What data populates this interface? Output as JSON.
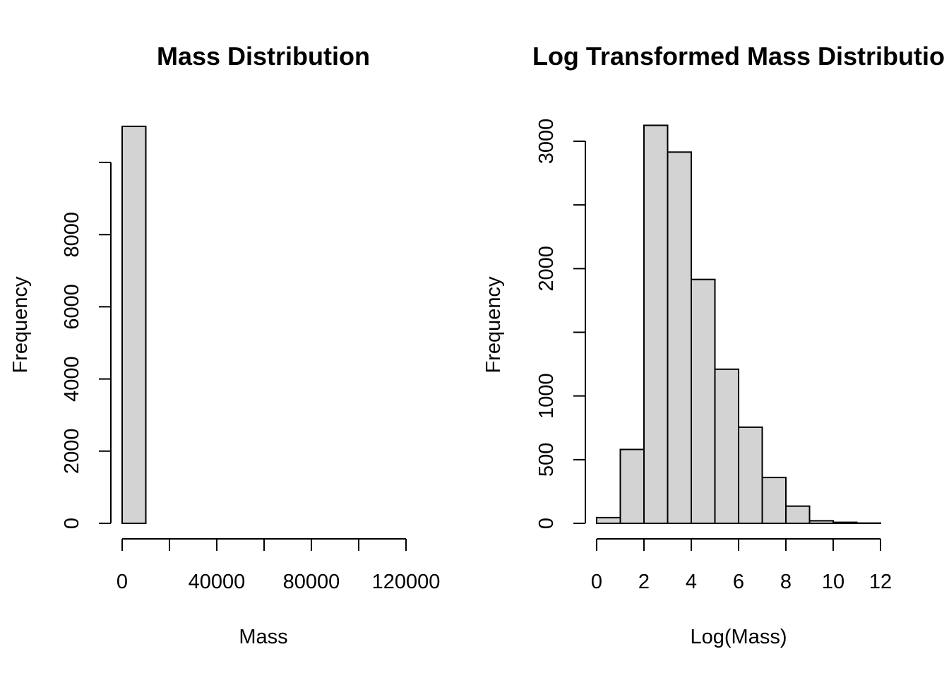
{
  "chart_data": [
    {
      "type": "bar",
      "title": "Mass Distribution",
      "xlabel": "Mass",
      "ylabel": "Frequency",
      "xlim": [
        0,
        120000
      ],
      "ylim": [
        0,
        11000
      ],
      "bin_width": 10000,
      "bins": [
        {
          "x0": 0,
          "x1": 10000,
          "count": 11000
        },
        {
          "x0": 10000,
          "x1": 20000,
          "count": 0
        },
        {
          "x0": 20000,
          "x1": 30000,
          "count": 0
        },
        {
          "x0": 30000,
          "x1": 40000,
          "count": 0
        },
        {
          "x0": 40000,
          "x1": 50000,
          "count": 0
        },
        {
          "x0": 50000,
          "x1": 60000,
          "count": 0
        },
        {
          "x0": 60000,
          "x1": 70000,
          "count": 0
        },
        {
          "x0": 70000,
          "x1": 80000,
          "count": 0
        },
        {
          "x0": 80000,
          "x1": 90000,
          "count": 0
        },
        {
          "x0": 90000,
          "x1": 100000,
          "count": 0
        },
        {
          "x0": 100000,
          "x1": 110000,
          "count": 0
        },
        {
          "x0": 110000,
          "x1": 120000,
          "count": 0
        }
      ],
      "x_ticks": [
        0,
        20000,
        40000,
        60000,
        80000,
        100000,
        120000
      ],
      "x_tick_labels": [
        "0",
        "",
        "40000",
        "",
        "80000",
        "",
        "120000"
      ],
      "y_ticks": [
        0,
        2000,
        4000,
        6000,
        8000,
        10000
      ],
      "y_tick_labels": [
        "0",
        "2000",
        "4000",
        "6000",
        "8000",
        ""
      ],
      "grid": false,
      "bar_color": "#d3d3d3"
    },
    {
      "type": "bar",
      "title": "Log Transformed Mass Distributio",
      "xlabel": "Log(Mass)",
      "ylabel": "Frequency",
      "xlim": [
        0,
        12
      ],
      "ylim": [
        0,
        3100
      ],
      "bin_width": 1,
      "bins": [
        {
          "x0": 0,
          "x1": 1,
          "count": 45
        },
        {
          "x0": 1,
          "x1": 2,
          "count": 580
        },
        {
          "x0": 2,
          "x1": 3,
          "count": 3125
        },
        {
          "x0": 3,
          "x1": 4,
          "count": 2915
        },
        {
          "x0": 4,
          "x1": 5,
          "count": 1915
        },
        {
          "x0": 5,
          "x1": 6,
          "count": 1210
        },
        {
          "x0": 6,
          "x1": 7,
          "count": 755
        },
        {
          "x0": 7,
          "x1": 8,
          "count": 360
        },
        {
          "x0": 8,
          "x1": 9,
          "count": 135
        },
        {
          "x0": 9,
          "x1": 10,
          "count": 20
        },
        {
          "x0": 10,
          "x1": 11,
          "count": 8
        },
        {
          "x0": 11,
          "x1": 12,
          "count": 2
        }
      ],
      "x_ticks": [
        0,
        2,
        4,
        6,
        8,
        10,
        12
      ],
      "x_tick_labels": [
        "0",
        "2",
        "4",
        "6",
        "8",
        "10",
        "12"
      ],
      "y_ticks": [
        0,
        500,
        1000,
        1500,
        2000,
        2500,
        3000
      ],
      "y_tick_labels": [
        "0",
        "500",
        "1000",
        "",
        "2000",
        "",
        "3000"
      ],
      "grid": false,
      "bar_color": "#d3d3d3"
    }
  ]
}
